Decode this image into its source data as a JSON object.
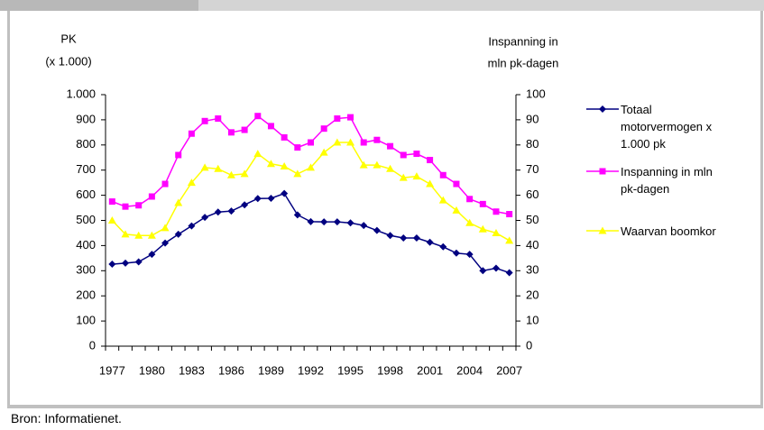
{
  "chart_data": {
    "type": "line",
    "ylabel": [
      "PK",
      "(x 1.000)"
    ],
    "y2label": [
      "Inspanning in",
      "mln pk-dagen"
    ],
    "categories": [
      "1977",
      null,
      null,
      "1980",
      null,
      null,
      "1983",
      null,
      null,
      "1986",
      null,
      null,
      "1989",
      null,
      null,
      "1992",
      null,
      null,
      "1995",
      null,
      null,
      "1998",
      null,
      null,
      "2001",
      null,
      null,
      "2004",
      null,
      null,
      "2007"
    ],
    "ylim": [
      0,
      1000
    ],
    "yticks": [
      0,
      100,
      200,
      300,
      400,
      500,
      600,
      700,
      800,
      900,
      {
        "value": 1000,
        "label": "1.000"
      }
    ],
    "y2lim": [
      0,
      100
    ],
    "y2ticks": [
      0,
      10,
      20,
      30,
      40,
      50,
      60,
      70,
      80,
      90,
      100
    ],
    "series": [
      {
        "name": "Totaal motorvermogen x 1.000 pk",
        "color": "#000080",
        "marker": "diamond",
        "values": [
          326,
          330,
          335,
          365,
          410,
          445,
          478,
          512,
          533,
          537,
          562,
          587,
          588,
          607,
          522,
          495,
          494,
          494,
          490,
          480,
          460,
          440,
          430,
          430,
          413,
          395,
          370,
          365,
          300,
          310,
          292
        ]
      },
      {
        "name": "Inspanning in mln pk-dagen",
        "color": "#ff00ff",
        "marker": "square",
        "axis": "y2",
        "values": [
          57.5,
          55.5,
          56,
          59.5,
          64.5,
          76,
          84.5,
          89.5,
          90.5,
          85,
          86,
          91.5,
          87.5,
          83,
          79,
          81,
          86.5,
          90.5,
          91,
          81,
          82,
          79.5,
          76,
          76.5,
          74,
          68,
          64.5,
          58.5,
          56.5,
          53.5,
          52.5
        ]
      },
      {
        "name": "Waarvan boomkor",
        "color": "#ffff00",
        "marker": "triangle",
        "axis": "y2",
        "values": [
          50,
          44.5,
          44,
          44,
          47,
          57,
          65,
          71,
          70.5,
          68,
          68.5,
          76.5,
          72.5,
          71.5,
          68.5,
          71,
          77,
          81,
          81,
          72,
          72,
          70.5,
          67,
          67.5,
          64.5,
          58,
          54,
          49,
          46.5,
          45,
          42
        ]
      }
    ]
  },
  "source": "Bron: Informatienet."
}
